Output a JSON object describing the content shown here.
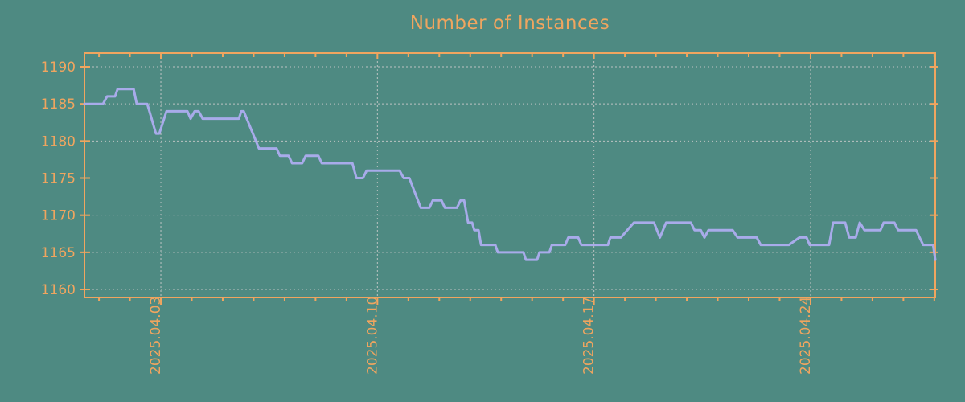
{
  "title": "Number of Instances",
  "colors": {
    "background": "#4E8A82",
    "accent": "#F0A55F",
    "line": "#A8ABEA",
    "grid": "#C9C9C9"
  },
  "chart_data": {
    "type": "line",
    "title": "Number of Instances",
    "xlabel": "",
    "ylabel": "",
    "legend": "none",
    "grid": true,
    "ylim": [
      1158.92,
      1191.84
    ],
    "yticks": [
      1160,
      1165,
      1170,
      1175,
      1180,
      1185,
      1190
    ],
    "x_unit": "days",
    "t_max": 27.5,
    "x_range_note": "approx 2025-03-31 12:00 to 2025-04-28 00:00",
    "xticks_major": [
      {
        "t": 2.47,
        "label": "2025.04.03"
      },
      {
        "t": 9.47,
        "label": "2025.04.10"
      },
      {
        "t": 16.47,
        "label": "2025.04.17"
      },
      {
        "t": 23.47,
        "label": "2025.04.24"
      }
    ],
    "x_day_tick_start": 0.47,
    "x_day_tick_step": 1,
    "series": [
      {
        "name": "instances",
        "points": [
          [
            0,
            1185
          ],
          [
            0.6,
            1185
          ],
          [
            0.73,
            1186
          ],
          [
            0.99,
            1186
          ],
          [
            1.07,
            1187
          ],
          [
            1.59,
            1187
          ],
          [
            1.69,
            1185
          ],
          [
            2.03,
            1185
          ],
          [
            2.31,
            1181
          ],
          [
            2.42,
            1181
          ],
          [
            2.65,
            1184
          ],
          [
            3.33,
            1184
          ],
          [
            3.43,
            1183
          ],
          [
            3.56,
            1184
          ],
          [
            3.69,
            1184
          ],
          [
            3.82,
            1183
          ],
          [
            4.99,
            1183
          ],
          [
            5.07,
            1184
          ],
          [
            5.15,
            1184
          ],
          [
            5.64,
            1179
          ],
          [
            6.21,
            1179
          ],
          [
            6.32,
            1178
          ],
          [
            6.6,
            1178
          ],
          [
            6.71,
            1177
          ],
          [
            7.04,
            1177
          ],
          [
            7.15,
            1178
          ],
          [
            7.56,
            1178
          ],
          [
            7.67,
            1177
          ],
          [
            8.66,
            1177
          ],
          [
            8.79,
            1175
          ],
          [
            9.0,
            1175
          ],
          [
            9.12,
            1176
          ],
          [
            10.19,
            1176
          ],
          [
            10.32,
            1175
          ],
          [
            10.5,
            1175
          ],
          [
            10.87,
            1171
          ],
          [
            11.15,
            1171
          ],
          [
            11.26,
            1172
          ],
          [
            11.54,
            1172
          ],
          [
            11.65,
            1171
          ],
          [
            12.04,
            1171
          ],
          [
            12.16,
            1172
          ],
          [
            12.27,
            1172
          ],
          [
            12.4,
            1169
          ],
          [
            12.53,
            1169
          ],
          [
            12.6,
            1168
          ],
          [
            12.74,
            1168
          ],
          [
            12.82,
            1166
          ],
          [
            13.28,
            1166
          ],
          [
            13.36,
            1165
          ],
          [
            14.19,
            1165
          ],
          [
            14.27,
            1164
          ],
          [
            14.63,
            1164
          ],
          [
            14.71,
            1165
          ],
          [
            15.03,
            1165
          ],
          [
            15.11,
            1166
          ],
          [
            15.54,
            1166
          ],
          [
            15.64,
            1167
          ],
          [
            15.96,
            1167
          ],
          [
            16.06,
            1166
          ],
          [
            16.92,
            1166
          ],
          [
            17.0,
            1167
          ],
          [
            17.34,
            1167
          ],
          [
            17.76,
            1169
          ],
          [
            18.41,
            1169
          ],
          [
            18.6,
            1167
          ],
          [
            18.8,
            1169
          ],
          [
            19.6,
            1169
          ],
          [
            19.72,
            1168
          ],
          [
            19.92,
            1168
          ],
          [
            20.04,
            1167
          ],
          [
            20.17,
            1168
          ],
          [
            20.95,
            1168
          ],
          [
            21.11,
            1167
          ],
          [
            21.73,
            1167
          ],
          [
            21.86,
            1166
          ],
          [
            22.77,
            1166
          ],
          [
            23.11,
            1167
          ],
          [
            23.34,
            1167
          ],
          [
            23.44,
            1166
          ],
          [
            24.07,
            1166
          ],
          [
            24.2,
            1169
          ],
          [
            24.59,
            1169
          ],
          [
            24.72,
            1167
          ],
          [
            24.93,
            1167
          ],
          [
            25.06,
            1169
          ],
          [
            25.21,
            1168
          ],
          [
            25.73,
            1168
          ],
          [
            25.83,
            1169
          ],
          [
            26.18,
            1169
          ],
          [
            26.3,
            1168
          ],
          [
            26.88,
            1168
          ],
          [
            27.11,
            1166
          ],
          [
            27.43,
            1166
          ],
          [
            27.5,
            1164
          ]
        ]
      }
    ]
  }
}
